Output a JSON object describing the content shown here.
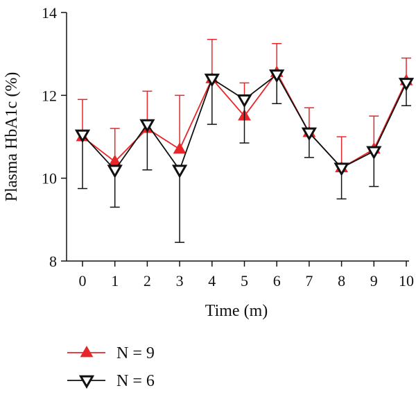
{
  "chart_data": {
    "type": "line",
    "xlabel": "Time (m)",
    "ylabel": "Plasma HbA1c (%)",
    "xlim": [
      0,
      10
    ],
    "ylim": [
      8,
      14
    ],
    "x_ticks": [
      0,
      1,
      2,
      3,
      4,
      5,
      6,
      7,
      8,
      9,
      10
    ],
    "y_ticks": [
      8,
      10,
      12,
      14
    ],
    "grid": false,
    "legend_position": "bottom-left",
    "series": [
      {
        "name": "N = 9",
        "color": "#e8262a",
        "marker": "triangle-up",
        "error_direction": "up",
        "x": [
          0,
          1,
          2,
          3,
          4,
          5,
          6,
          7,
          8,
          9,
          10
        ],
        "y": [
          11.0,
          10.4,
          11.2,
          10.7,
          12.4,
          11.5,
          12.55,
          11.1,
          10.25,
          10.7,
          12.35
        ],
        "err": [
          0.9,
          0.8,
          0.9,
          1.3,
          0.95,
          0.8,
          0.7,
          0.6,
          0.75,
          0.8,
          0.55
        ]
      },
      {
        "name": "N = 6",
        "color": "#111111",
        "marker": "triangle-down",
        "error_direction": "down",
        "x": [
          0,
          1,
          2,
          3,
          4,
          5,
          6,
          7,
          8,
          9,
          10
        ],
        "y": [
          11.05,
          10.2,
          11.3,
          10.2,
          12.4,
          11.9,
          12.5,
          11.1,
          10.25,
          10.65,
          12.3
        ],
        "err": [
          1.3,
          0.9,
          1.1,
          1.75,
          1.1,
          1.05,
          0.7,
          0.6,
          0.75,
          0.85,
          0.55
        ]
      }
    ]
  }
}
